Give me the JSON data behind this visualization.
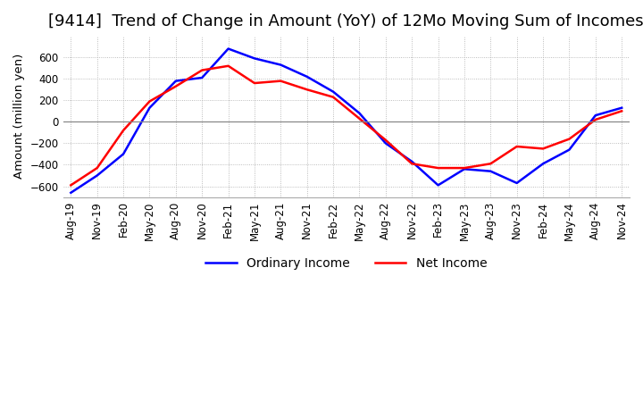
{
  "title": "[9414]  Trend of Change in Amount (YoY) of 12Mo Moving Sum of Incomes",
  "ylabel": "Amount (million yen)",
  "ylim": [
    -700,
    800
  ],
  "yticks": [
    -600,
    -400,
    -200,
    0,
    200,
    400,
    600
  ],
  "x_labels": [
    "Aug-19",
    "Nov-19",
    "Feb-20",
    "May-20",
    "Aug-20",
    "Nov-20",
    "Feb-21",
    "May-21",
    "Aug-21",
    "Nov-21",
    "Feb-22",
    "May-22",
    "Aug-22",
    "Nov-22",
    "Feb-23",
    "May-23",
    "Aug-23",
    "Nov-23",
    "Feb-24",
    "May-24",
    "Aug-24",
    "Nov-24"
  ],
  "ordinary_income": [
    -660,
    -500,
    -300,
    130,
    380,
    410,
    680,
    590,
    530,
    420,
    280,
    80,
    -200,
    -370,
    -590,
    -440,
    -460,
    -570,
    -390,
    -260,
    60,
    130
  ],
  "net_income": [
    -590,
    -430,
    -80,
    190,
    330,
    480,
    520,
    360,
    380,
    300,
    230,
    30,
    -170,
    -390,
    -430,
    -430,
    -390,
    -230,
    -250,
    -160,
    20,
    100
  ],
  "ordinary_color": "#0000ff",
  "net_color": "#ff0000",
  "background_color": "#ffffff",
  "grid_color": "#aaaaaa",
  "zero_line_color": "#888888",
  "title_fontsize": 13,
  "legend_fontsize": 10,
  "tick_fontsize": 8.5
}
